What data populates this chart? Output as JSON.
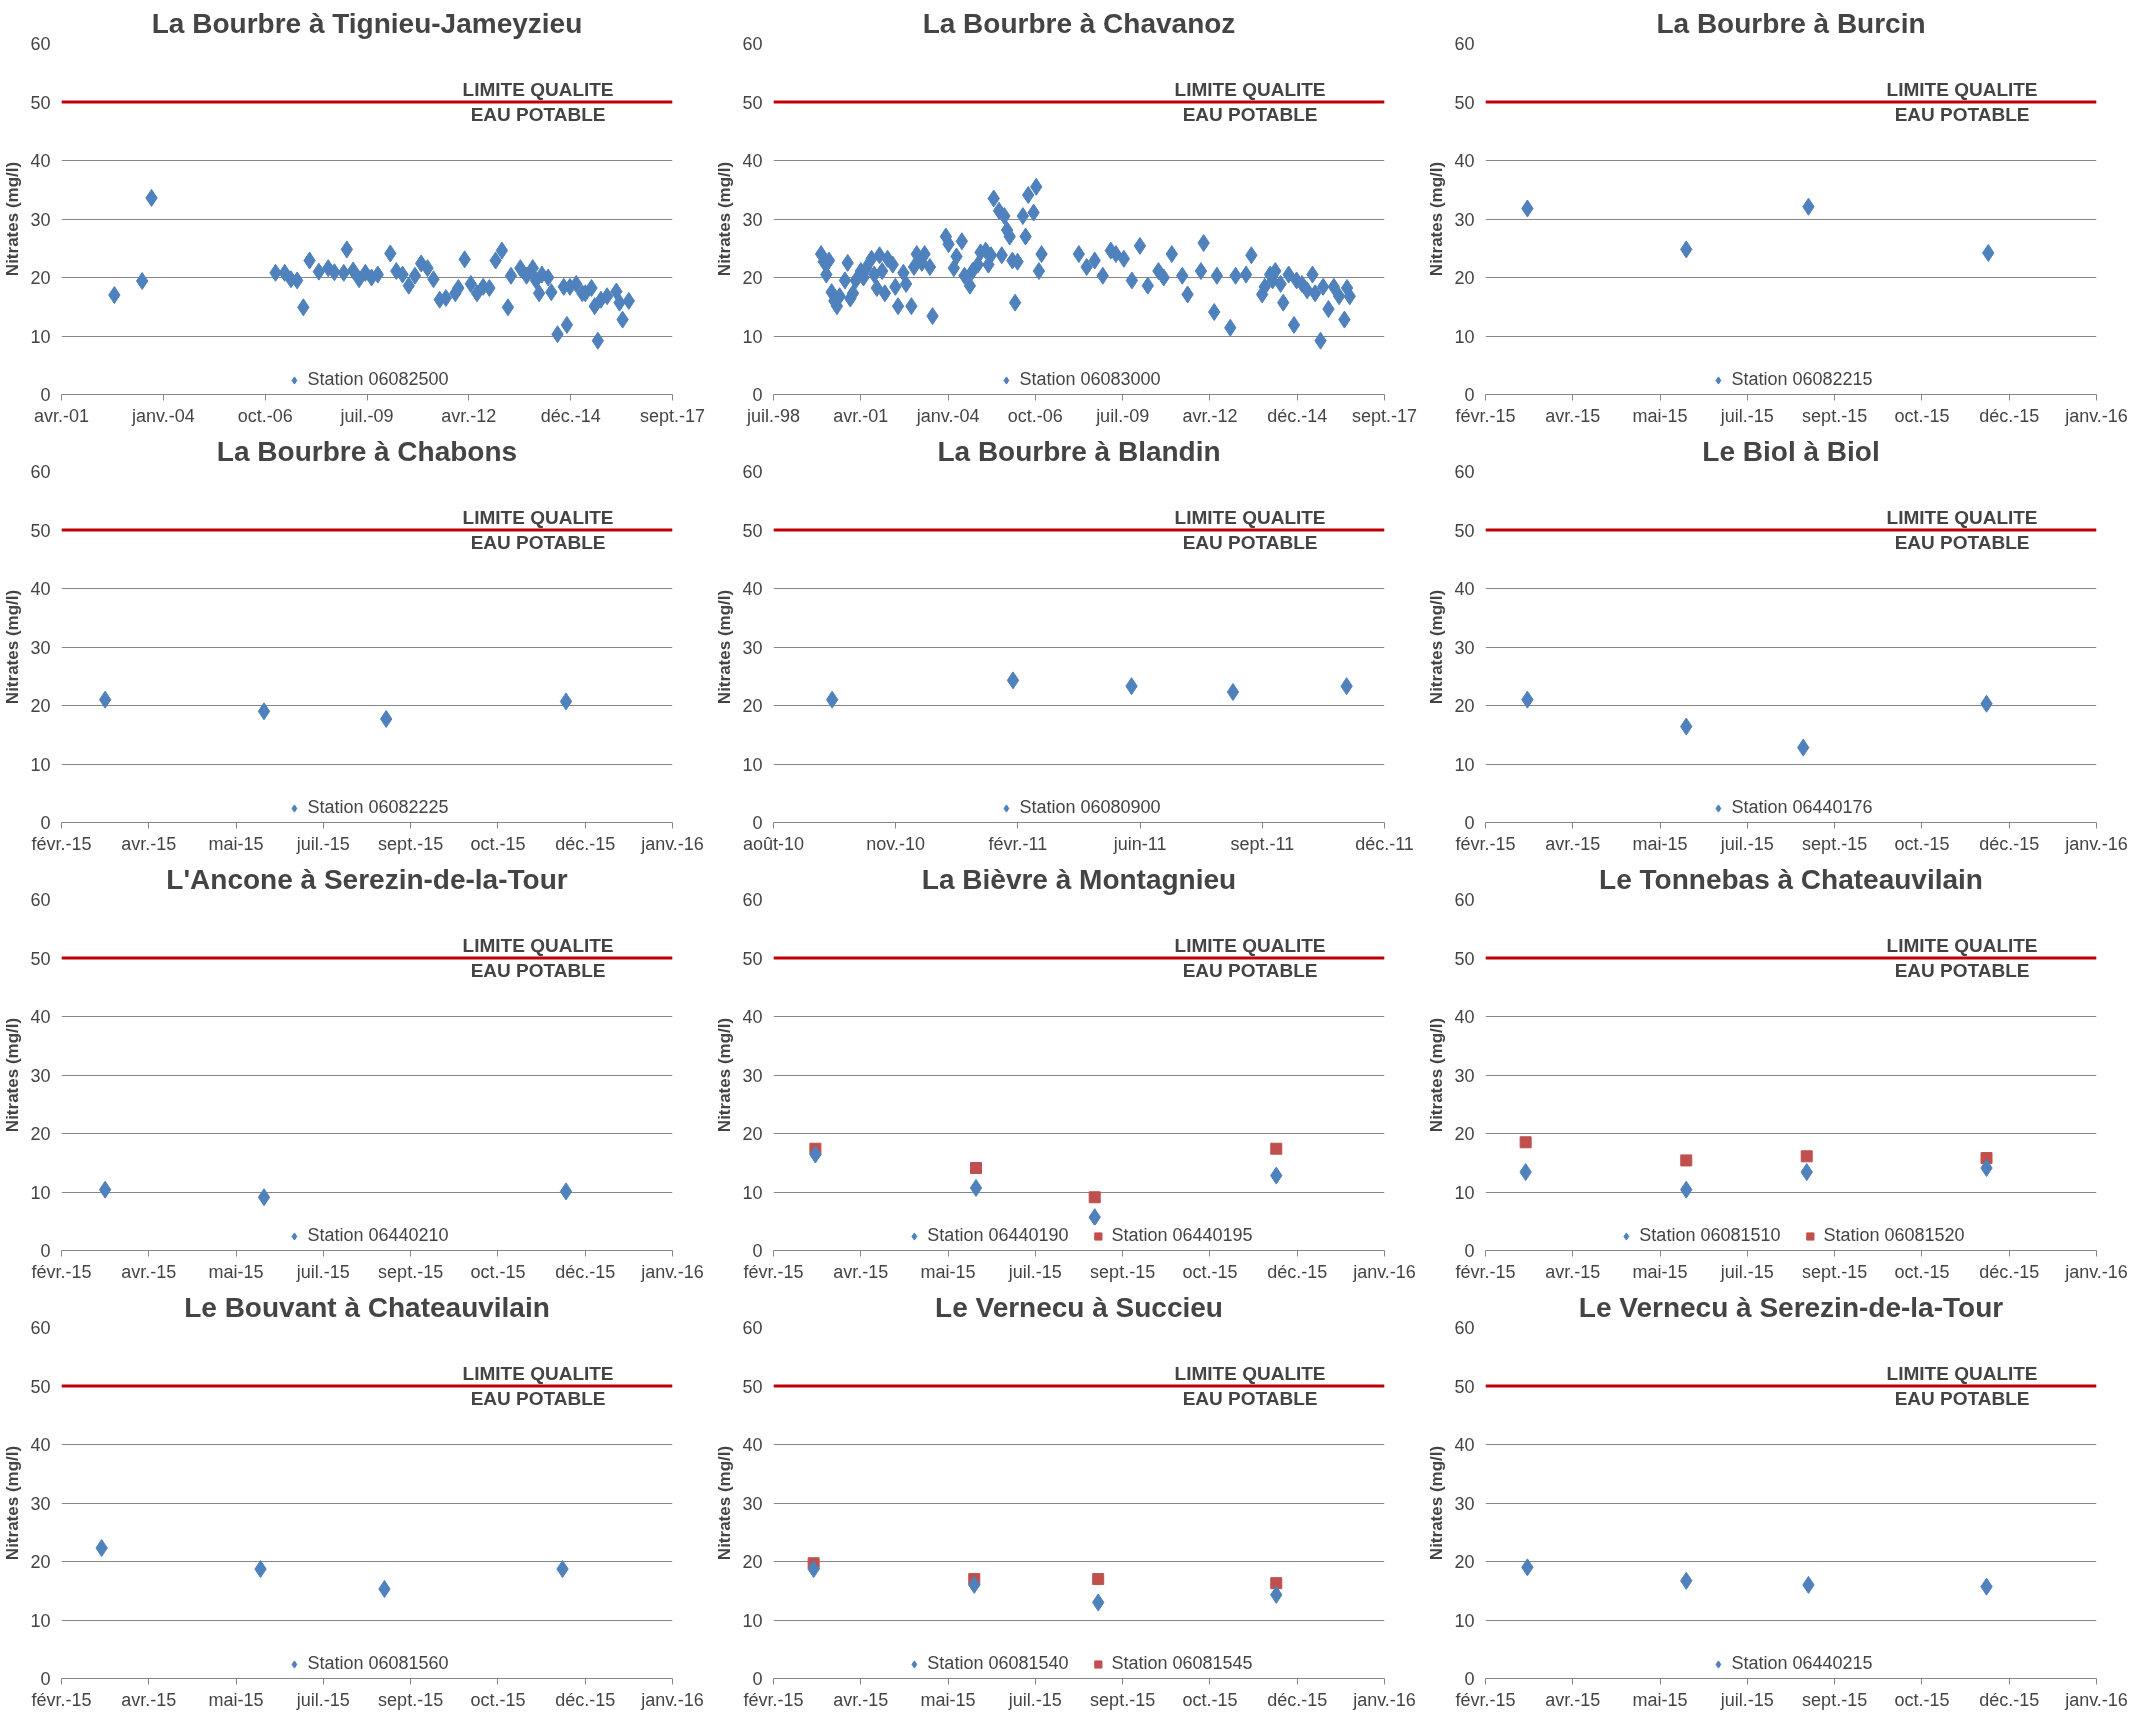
{
  "chart_data": [
    {
      "type": "scatter",
      "title": "La Bourbre à Tignieu-Jameyzieu",
      "ylabel": "Nitrates (mg/l)",
      "ylim": [
        0,
        60
      ],
      "yticks": [
        0,
        10,
        20,
        30,
        40,
        50,
        60
      ],
      "grid": "y",
      "legend": "bottom",
      "xlim": [
        "2001-04-14",
        "2017-09-17"
      ],
      "xticks": [
        {
          "value": "2001-04-14",
          "label": "avr.-01"
        },
        {
          "value": "2004-01-09",
          "label": "janv.-04"
        },
        {
          "value": "2006-10-05",
          "label": "oct.-06"
        },
        {
          "value": "2009-07-01",
          "label": "juil.-09"
        },
        {
          "value": "2012-03-27",
          "label": "avr.-12"
        },
        {
          "value": "2014-12-22",
          "label": "déc.-14"
        },
        {
          "value": "2017-09-17",
          "label": "sept.-17"
        }
      ],
      "ref_lines": [
        {
          "axis": "y",
          "value": 50,
          "label": "LIMITE QUALITE\nEAU POTABLE",
          "color": "#c00000"
        }
      ],
      "series": [
        {
          "name": "Station 06082500",
          "color": "#4f81bd",
          "marker": "diamond",
          "x": [
            "2002-09",
            "2003-06",
            "2003-09",
            "2007-01",
            "2007-04",
            "2007-06",
            "2007-08",
            "2007-10",
            "2007-12",
            "2008-03",
            "2008-06",
            "2008-08",
            "2008-11",
            "2008-12",
            "2009-02",
            "2009-04",
            "2009-06",
            "2009-08",
            "2009-10",
            "2010-02",
            "2010-04",
            "2010-06",
            "2010-08",
            "2010-10",
            "2010-12",
            "2011-02",
            "2011-04",
            "2011-06",
            "2011-08",
            "2011-11",
            "2011-12",
            "2012-02",
            "2012-04",
            "2012-06",
            "2012-08",
            "2012-10",
            "2012-12",
            "2013-02",
            "2013-04",
            "2013-05",
            "2013-08",
            "2013-10",
            "2013-12",
            "2014-01",
            "2014-02",
            "2014-03",
            "2014-05",
            "2014-06",
            "2014-08",
            "2014-10",
            "2014-11",
            "2014-12",
            "2015-02",
            "2015-04",
            "2015-05",
            "2015-07",
            "2015-08",
            "2015-09",
            "2015-10",
            "2015-12",
            "2016-03",
            "2016-04",
            "2016-05",
            "2016-07"
          ],
          "values": [
            17,
            19.4,
            33.6,
            20.8,
            20.8,
            19.7,
            19.5,
            14.9,
            22.9,
            21,
            21.6,
            20.9,
            20.8,
            24.8,
            21.2,
            19.7,
            20.8,
            20,
            20.5,
            24.1,
            21.1,
            20.5,
            18.6,
            20.3,
            22.4,
            21.6,
            19.7,
            16.2,
            16.5,
            17.3,
            18.2,
            23.1,
            18.9,
            17.3,
            18.4,
            18.2,
            22.9,
            24.6,
            14.9,
            20.3,
            21.6,
            20.3,
            21.6,
            19.5,
            17.3,
            20.5,
            20,
            17.5,
            10.3,
            18.4,
            11.9,
            18.4,
            18.9,
            17.3,
            17.3,
            18.2,
            15.1,
            9.2,
            16.2,
            16.8,
            17.6,
            15.7,
            12.8,
            16
          ]
        }
      ]
    },
    {
      "type": "scatter",
      "title": "La Bourbre à Chavanoz",
      "ylabel": "Nitrates (mg/l)",
      "ylim": [
        0,
        60
      ],
      "yticks": [
        0,
        10,
        20,
        30,
        40,
        50,
        60
      ],
      "grid": "y",
      "legend": "bottom",
      "xlim": [
        "1998-07-19",
        "2017-09-17"
      ],
      "xticks": [
        {
          "value": "1998-07-19",
          "label": "juil.-98"
        },
        {
          "value": "2001-04-14",
          "label": "avr.-01"
        },
        {
          "value": "2004-01-09",
          "label": "janv.-04"
        },
        {
          "value": "2006-10-05",
          "label": "oct.-06"
        },
        {
          "value": "2009-07-01",
          "label": "juil.-09"
        },
        {
          "value": "2012-03-27",
          "label": "avr.-12"
        },
        {
          "value": "2014-12-22",
          "label": "déc.-14"
        },
        {
          "value": "2017-09-17",
          "label": "sept.-17"
        }
      ],
      "ref_lines": [
        {
          "axis": "y",
          "value": 50,
          "label": "LIMITE QUALITE\nEAU POTABLE",
          "color": "#c00000"
        }
      ],
      "series": [
        {
          "name": "Station 06083000",
          "color": "#4f81bd",
          "marker": "diamond",
          "x": [
            "2000-01",
            "2000-02",
            "2000-03",
            "2000-04",
            "2000-05",
            "2000-06",
            "2000-07",
            "2000-08",
            "2000-10",
            "2000-11",
            "2000-12",
            "2001-01",
            "2001-02",
            "2001-04",
            "2001-05",
            "2001-06",
            "2001-08",
            "2001-09",
            "2001-10",
            "2001-11",
            "2001-12",
            "2002-01",
            "2002-02",
            "2002-04",
            "2002-05",
            "2002-06",
            "2002-08",
            "2002-09",
            "2002-11",
            "2002-12",
            "2003-01",
            "2003-03",
            "2003-04",
            "2003-06",
            "2003-07",
            "2003-12",
            "2004-01",
            "2004-03",
            "2004-04",
            "2004-06",
            "2004-07",
            "2004-09",
            "2004-10",
            "2004-12",
            "2005-01",
            "2005-03",
            "2005-04",
            "2005-05",
            "2005-06",
            "2005-08",
            "2005-09",
            "2005-10",
            "2005-11",
            "2005-12",
            "2006-01",
            "2006-02",
            "2006-03",
            "2006-05",
            "2006-06",
            "2006-07",
            "2006-09",
            "2006-10",
            "2006-11",
            "2006-12",
            "2008-02",
            "2008-05",
            "2008-08",
            "2008-11",
            "2009-02",
            "2009-04",
            "2009-07",
            "2009-10",
            "2010-01",
            "2010-04",
            "2010-08",
            "2010-10",
            "2011-01",
            "2011-05",
            "2011-07",
            "2011-12",
            "2012-01",
            "2012-05",
            "2012-06",
            "2012-11",
            "2013-01",
            "2013-05",
            "2013-07",
            "2013-11",
            "2013-12",
            "2014-02",
            "2014-03",
            "2014-04",
            "2014-06",
            "2014-07",
            "2014-09",
            "2014-11",
            "2014-12",
            "2015-02",
            "2015-04",
            "2015-06",
            "2015-07",
            "2015-09",
            "2015-10",
            "2015-12",
            "2016-02",
            "2016-04",
            "2016-06",
            "2016-07",
            "2016-08"
          ],
          "values": [
            24,
            22.7,
            20.5,
            22.9,
            17.5,
            16,
            15.1,
            16.8,
            19.5,
            22.5,
            16.4,
            17.3,
            19.5,
            21.1,
            20,
            21.6,
            23.2,
            20.5,
            18.2,
            23.8,
            21.1,
            17.3,
            23.2,
            22.2,
            18.4,
            15.1,
            20.8,
            18.9,
            15.1,
            21.8,
            24,
            22.5,
            24,
            21.8,
            13.4,
            27,
            25.7,
            21.6,
            23.6,
            26.2,
            20.3,
            18.6,
            21.1,
            22.2,
            24.3,
            24.6,
            22.2,
            23.8,
            33.5,
            31.4,
            23.8,
            30.5,
            28.1,
            27,
            22.9,
            15.7,
            22.7,
            30.5,
            27,
            34.1,
            31.1,
            35.5,
            21.1,
            24,
            24,
            21.8,
            22.9,
            20.3,
            24.6,
            24,
            23.2,
            19.5,
            25.4,
            18.6,
            21.1,
            20,
            24,
            20.3,
            17.1,
            21.1,
            25.9,
            14.1,
            20.3,
            11.4,
            20.3,
            20.5,
            23.8,
            17.1,
            18.4,
            20.5,
            19.5,
            21.1,
            18.9,
            15.7,
            20.5,
            11.9,
            19.5,
            18.9,
            17.8,
            20.5,
            17.3,
            9.2,
            18.4,
            14.6,
            18.4,
            16.8,
            12.8,
            18.2,
            16.8
          ]
        }
      ]
    },
    {
      "type": "scatter",
      "title": "La Bourbre à Burcin",
      "ylabel": "Nitrates (mg/l)",
      "ylim": [
        0,
        60
      ],
      "yticks": [
        0,
        10,
        20,
        30,
        40,
        50,
        60
      ],
      "grid": "y",
      "legend": "bottom",
      "xlim": [
        "2015-02-14",
        "2016-01-30"
      ],
      "xticks": [
        {
          "value": "2015-02-14",
          "label": "févr.-15"
        },
        {
          "value": "2015-04-05",
          "label": "avr.-15"
        },
        {
          "value": "2015-05-25",
          "label": "mai-15"
        },
        {
          "value": "2015-07-14",
          "label": "juil.-15"
        },
        {
          "value": "2015-09-02",
          "label": "sept.-15"
        },
        {
          "value": "2015-10-22",
          "label": "oct.-15"
        },
        {
          "value": "2015-12-11",
          "label": "déc.-15"
        },
        {
          "value": "2016-01-30",
          "label": "janv.-16"
        }
      ],
      "ref_lines": [
        {
          "axis": "y",
          "value": 50,
          "label": "LIMITE QUALITE\nEAU POTABLE",
          "color": "#c00000"
        }
      ],
      "series": [
        {
          "name": "Station 06082215",
          "color": "#4f81bd",
          "marker": "diamond",
          "x": [
            "2015-03-10",
            "2015-06-09",
            "2015-08-18",
            "2015-11-29"
          ],
          "values": [
            31.8,
            24.8,
            32.1,
            24.2
          ]
        }
      ]
    },
    {
      "type": "scatter",
      "title": "La Bourbre à Chabons",
      "ylabel": "Nitrates (mg/l)",
      "ylim": [
        0,
        60
      ],
      "yticks": [
        0,
        10,
        20,
        30,
        40,
        50,
        60
      ],
      "grid": "y",
      "legend": "bottom",
      "xlim": [
        "2015-02-14",
        "2016-01-30"
      ],
      "xticks": [
        {
          "value": "2015-02-14",
          "label": "févr.-15"
        },
        {
          "value": "2015-04-05",
          "label": "avr.-15"
        },
        {
          "value": "2015-05-25",
          "label": "mai-15"
        },
        {
          "value": "2015-07-14",
          "label": "juil.-15"
        },
        {
          "value": "2015-09-02",
          "label": "sept.-15"
        },
        {
          "value": "2015-10-22",
          "label": "oct.-15"
        },
        {
          "value": "2015-12-11",
          "label": "déc.-15"
        },
        {
          "value": "2016-01-30",
          "label": "janv.-16"
        }
      ],
      "ref_lines": [
        {
          "axis": "y",
          "value": 50,
          "label": "LIMITE QUALITE\nEAU POTABLE",
          "color": "#c00000"
        }
      ],
      "series": [
        {
          "name": "Station 06082225",
          "color": "#4f81bd",
          "marker": "diamond",
          "x": [
            "2015-03-11",
            "2015-06-10",
            "2015-08-19",
            "2015-11-30"
          ],
          "values": [
            21,
            19,
            17.7,
            20.7
          ]
        }
      ]
    },
    {
      "type": "scatter",
      "title": "La Bourbre à Blandin",
      "ylabel": "Nitrates (mg/l)",
      "ylim": [
        0,
        60
      ],
      "yticks": [
        0,
        10,
        20,
        30,
        40,
        50,
        60
      ],
      "grid": "y",
      "legend": "bottom",
      "xlim": [
        "2010-08-10",
        "2011-12-23"
      ],
      "xticks": [
        {
          "value": "2010-08-10",
          "label": "août-10"
        },
        {
          "value": "2010-11-18",
          "label": "nov.-10"
        },
        {
          "value": "2011-02-26",
          "label": "févr.-11"
        },
        {
          "value": "2011-06-06",
          "label": "juin-11"
        },
        {
          "value": "2011-09-14",
          "label": "sept.-11"
        },
        {
          "value": "2011-12-23",
          "label": "déc.-11"
        }
      ],
      "ref_lines": [
        {
          "axis": "y",
          "value": 50,
          "label": "LIMITE QUALITE\nEAU POTABLE",
          "color": "#c00000"
        }
      ],
      "series": [
        {
          "name": "Station 06080900",
          "color": "#4f81bd",
          "marker": "diamond",
          "x": [
            "2010-09-27",
            "2011-02-22",
            "2011-05-30",
            "2011-08-21",
            "2011-11-22"
          ],
          "values": [
            21,
            24.3,
            23.3,
            22.3,
            23.3
          ]
        }
      ]
    },
    {
      "type": "scatter",
      "title": "Le Biol à Biol",
      "ylabel": "Nitrates (mg/l)",
      "ylim": [
        0,
        60
      ],
      "yticks": [
        0,
        10,
        20,
        30,
        40,
        50,
        60
      ],
      "grid": "y",
      "legend": "bottom",
      "xlim": [
        "2015-02-14",
        "2016-01-30"
      ],
      "xticks": [
        {
          "value": "2015-02-14",
          "label": "févr.-15"
        },
        {
          "value": "2015-04-05",
          "label": "avr.-15"
        },
        {
          "value": "2015-05-25",
          "label": "mai-15"
        },
        {
          "value": "2015-07-14",
          "label": "juil.-15"
        },
        {
          "value": "2015-09-02",
          "label": "sept.-15"
        },
        {
          "value": "2015-10-22",
          "label": "oct.-15"
        },
        {
          "value": "2015-12-11",
          "label": "déc.-15"
        },
        {
          "value": "2016-01-30",
          "label": "janv.-16"
        }
      ],
      "ref_lines": [
        {
          "axis": "y",
          "value": 50,
          "label": "LIMITE QUALITE\nEAU POTABLE",
          "color": "#c00000"
        }
      ],
      "series": [
        {
          "name": "Station 06440176",
          "color": "#4f81bd",
          "marker": "diamond",
          "x": [
            "2015-03-10",
            "2015-06-09",
            "2015-08-15",
            "2015-11-28"
          ],
          "values": [
            21,
            16.4,
            12.8,
            20.3
          ]
        }
      ]
    },
    {
      "type": "scatter",
      "title": "L'Ancone à Serezin-de-la-Tour",
      "ylabel": "Nitrates (mg/l)",
      "ylim": [
        0,
        60
      ],
      "yticks": [
        0,
        10,
        20,
        30,
        40,
        50,
        60
      ],
      "grid": "y",
      "legend": "bottom",
      "xlim": [
        "2015-02-14",
        "2016-01-30"
      ],
      "xticks": [
        {
          "value": "2015-02-14",
          "label": "févr.-15"
        },
        {
          "value": "2015-04-05",
          "label": "avr.-15"
        },
        {
          "value": "2015-05-25",
          "label": "mai-15"
        },
        {
          "value": "2015-07-14",
          "label": "juil.-15"
        },
        {
          "value": "2015-09-02",
          "label": "sept.-15"
        },
        {
          "value": "2015-10-22",
          "label": "oct.-15"
        },
        {
          "value": "2015-12-11",
          "label": "déc.-15"
        },
        {
          "value": "2016-01-30",
          "label": "janv.-16"
        }
      ],
      "ref_lines": [
        {
          "axis": "y",
          "value": 50,
          "label": "LIMITE QUALITE\nEAU POTABLE",
          "color": "#c00000"
        }
      ],
      "series": [
        {
          "name": "Station 06440210",
          "color": "#4f81bd",
          "marker": "diamond",
          "x": [
            "2015-03-11",
            "2015-06-10",
            "2015-11-30"
          ],
          "values": [
            10.4,
            9.1,
            10.1
          ]
        }
      ]
    },
    {
      "type": "scatter",
      "title": "La Bièvre à Montagnieu",
      "ylabel": "Nitrates (mg/l)",
      "ylim": [
        0,
        60
      ],
      "yticks": [
        0,
        10,
        20,
        30,
        40,
        50,
        60
      ],
      "grid": "y",
      "legend": "bottom",
      "xlim": [
        "2015-02-14",
        "2016-01-30"
      ],
      "xticks": [
        {
          "value": "2015-02-14",
          "label": "févr.-15"
        },
        {
          "value": "2015-04-05",
          "label": "avr.-15"
        },
        {
          "value": "2015-05-25",
          "label": "mai-15"
        },
        {
          "value": "2015-07-14",
          "label": "juil.-15"
        },
        {
          "value": "2015-09-02",
          "label": "sept.-15"
        },
        {
          "value": "2015-10-22",
          "label": "oct.-15"
        },
        {
          "value": "2015-12-11",
          "label": "déc.-15"
        },
        {
          "value": "2016-01-30",
          "label": "janv.-16"
        }
      ],
      "ref_lines": [
        {
          "axis": "y",
          "value": 50,
          "label": "LIMITE QUALITE\nEAU POTABLE",
          "color": "#c00000"
        }
      ],
      "series": [
        {
          "name": "Station 06440190",
          "color": "#4f81bd",
          "marker": "diamond",
          "x": [
            "2015-03-10",
            "2015-06-10",
            "2015-08-17",
            "2015-11-29"
          ],
          "values": [
            16.4,
            10.7,
            5.7,
            12.8
          ]
        },
        {
          "name": "Station 06440195",
          "color": "#c0504d",
          "marker": "square",
          "x": [
            "2015-03-10",
            "2015-06-10",
            "2015-08-17",
            "2015-11-29"
          ],
          "values": [
            17.4,
            14.1,
            9.1,
            17.4
          ]
        }
      ]
    },
    {
      "type": "scatter",
      "title": "Le Tonnebas à Chateauvilain",
      "ylabel": "Nitrates (mg/l)",
      "ylim": [
        0,
        60
      ],
      "yticks": [
        0,
        10,
        20,
        30,
        40,
        50,
        60
      ],
      "grid": "y",
      "legend": "bottom",
      "xlim": [
        "2015-02-14",
        "2016-01-30"
      ],
      "xticks": [
        {
          "value": "2015-02-14",
          "label": "févr.-15"
        },
        {
          "value": "2015-04-05",
          "label": "avr.-15"
        },
        {
          "value": "2015-05-25",
          "label": "mai-15"
        },
        {
          "value": "2015-07-14",
          "label": "juil.-15"
        },
        {
          "value": "2015-09-02",
          "label": "sept.-15"
        },
        {
          "value": "2015-10-22",
          "label": "oct.-15"
        },
        {
          "value": "2015-12-11",
          "label": "déc.-15"
        },
        {
          "value": "2016-01-30",
          "label": "janv.-16"
        }
      ],
      "ref_lines": [
        {
          "axis": "y",
          "value": 50,
          "label": "LIMITE QUALITE\nEAU POTABLE",
          "color": "#c00000"
        }
      ],
      "series": [
        {
          "name": "Station 06081510",
          "color": "#4f81bd",
          "marker": "diamond",
          "x": [
            "2015-03-09",
            "2015-06-09",
            "2015-08-17",
            "2015-11-28"
          ],
          "values": [
            13.4,
            10.4,
            13.4,
            14.1
          ]
        },
        {
          "name": "Station 06081520",
          "color": "#c0504d",
          "marker": "square",
          "x": [
            "2015-03-09",
            "2015-06-09",
            "2015-08-17",
            "2015-11-28"
          ],
          "values": [
            18.5,
            15.4,
            16.1,
            15.8
          ]
        }
      ]
    },
    {
      "type": "scatter",
      "title": "Le Bouvant à Chateauvilain",
      "ylabel": "Nitrates (mg/l)",
      "ylim": [
        0,
        60
      ],
      "yticks": [
        0,
        10,
        20,
        30,
        40,
        50,
        60
      ],
      "grid": "y",
      "legend": "bottom",
      "xlim": [
        "2015-02-14",
        "2016-01-30"
      ],
      "xticks": [
        {
          "value": "2015-02-14",
          "label": "févr.-15"
        },
        {
          "value": "2015-04-05",
          "label": "avr.-15"
        },
        {
          "value": "2015-05-25",
          "label": "mai-15"
        },
        {
          "value": "2015-07-14",
          "label": "juil.-15"
        },
        {
          "value": "2015-09-02",
          "label": "sept.-15"
        },
        {
          "value": "2015-10-22",
          "label": "oct.-15"
        },
        {
          "value": "2015-12-11",
          "label": "déc.-15"
        },
        {
          "value": "2016-01-30",
          "label": "janv.-16"
        }
      ],
      "ref_lines": [
        {
          "axis": "y",
          "value": 50,
          "label": "LIMITE QUALITE\nEAU POTABLE",
          "color": "#c00000"
        }
      ],
      "series": [
        {
          "name": "Station 06081560",
          "color": "#4f81bd",
          "marker": "diamond",
          "x": [
            "2015-03-09",
            "2015-06-08",
            "2015-08-18",
            "2015-11-28"
          ],
          "values": [
            22.3,
            18.7,
            15.3,
            18.7
          ]
        }
      ]
    },
    {
      "type": "scatter",
      "title": "Le Vernecu à Succieu",
      "ylabel": "Nitrates (mg/l)",
      "ylim": [
        0,
        60
      ],
      "yticks": [
        0,
        10,
        20,
        30,
        40,
        50,
        60
      ],
      "grid": "y",
      "legend": "bottom",
      "xlim": [
        "2015-02-14",
        "2016-01-30"
      ],
      "xticks": [
        {
          "value": "2015-02-14",
          "label": "févr.-15"
        },
        {
          "value": "2015-04-05",
          "label": "avr.-15"
        },
        {
          "value": "2015-05-25",
          "label": "mai-15"
        },
        {
          "value": "2015-07-14",
          "label": "juil.-15"
        },
        {
          "value": "2015-09-02",
          "label": "sept.-15"
        },
        {
          "value": "2015-10-22",
          "label": "oct.-15"
        },
        {
          "value": "2015-12-11",
          "label": "déc.-15"
        },
        {
          "value": "2016-01-30",
          "label": "janv.-16"
        }
      ],
      "ref_lines": [
        {
          "axis": "y",
          "value": 50,
          "label": "LIMITE QUALITE\nEAU POTABLE",
          "color": "#c00000"
        }
      ],
      "series": [
        {
          "name": "Station 06081540",
          "color": "#4f81bd",
          "marker": "diamond",
          "x": [
            "2015-03-09",
            "2015-06-09",
            "2015-08-19",
            "2015-11-29"
          ],
          "values": [
            18.7,
            16,
            13,
            14.3
          ]
        },
        {
          "name": "Station 06081545",
          "color": "#c0504d",
          "marker": "square",
          "x": [
            "2015-03-09",
            "2015-06-09",
            "2015-08-19",
            "2015-11-29"
          ],
          "values": [
            19.7,
            17,
            17,
            16.3
          ]
        }
      ]
    },
    {
      "type": "scatter",
      "title": "Le Vernecu à Serezin-de-la-Tour",
      "ylabel": "Nitrates (mg/l)",
      "ylim": [
        0,
        60
      ],
      "yticks": [
        0,
        10,
        20,
        30,
        40,
        50,
        60
      ],
      "grid": "y",
      "legend": "bottom",
      "xlim": [
        "2015-02-14",
        "2016-01-30"
      ],
      "xticks": [
        {
          "value": "2015-02-14",
          "label": "févr.-15"
        },
        {
          "value": "2015-04-05",
          "label": "avr.-15"
        },
        {
          "value": "2015-05-25",
          "label": "mai-15"
        },
        {
          "value": "2015-07-14",
          "label": "juil.-15"
        },
        {
          "value": "2015-09-02",
          "label": "sept.-15"
        },
        {
          "value": "2015-10-22",
          "label": "oct.-15"
        },
        {
          "value": "2015-12-11",
          "label": "déc.-15"
        },
        {
          "value": "2016-01-30",
          "label": "janv.-16"
        }
      ],
      "ref_lines": [
        {
          "axis": "y",
          "value": 50,
          "label": "LIMITE QUALITE\nEAU POTABLE",
          "color": "#c00000"
        }
      ],
      "series": [
        {
          "name": "Station 06440215",
          "color": "#4f81bd",
          "marker": "diamond",
          "x": [
            "2015-03-10",
            "2015-06-09",
            "2015-08-18",
            "2015-11-28"
          ],
          "values": [
            19,
            16.7,
            16,
            15.7
          ]
        }
      ]
    }
  ]
}
